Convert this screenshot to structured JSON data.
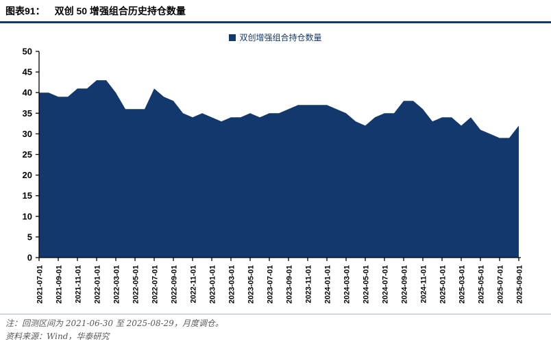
{
  "header": {
    "figure_label": "图表91：",
    "title": "双创 50 增强组合历史持仓数量"
  },
  "legend": {
    "label": "双创增强组合持仓数量"
  },
  "chart_data": {
    "type": "area",
    "title": "双创 50 增强组合历史持仓数量",
    "xlabel": "",
    "ylabel": "",
    "ylim": [
      0,
      50
    ],
    "y_ticks": [
      0,
      5,
      10,
      15,
      20,
      25,
      30,
      35,
      40,
      45,
      50
    ],
    "x_tick_every": 2,
    "grid": false,
    "legend_position": "top-center",
    "x": [
      "2021-07-01",
      "2021-08-01",
      "2021-09-01",
      "2021-10-01",
      "2021-11-01",
      "2021-12-01",
      "2022-01-01",
      "2022-02-01",
      "2022-03-01",
      "2022-04-01",
      "2022-05-01",
      "2022-06-01",
      "2022-07-01",
      "2022-08-01",
      "2022-09-01",
      "2022-10-01",
      "2022-11-01",
      "2022-12-01",
      "2023-01-01",
      "2023-02-01",
      "2023-03-01",
      "2023-04-01",
      "2023-05-01",
      "2023-06-01",
      "2023-07-01",
      "2023-08-01",
      "2023-09-01",
      "2023-10-01",
      "2023-11-01",
      "2023-12-01",
      "2024-01-01",
      "2024-02-01",
      "2024-03-01",
      "2024-04-01",
      "2024-05-01",
      "2024-06-01",
      "2024-07-01",
      "2024-08-01",
      "2024-09-01",
      "2024-10-01",
      "2024-11-01",
      "2024-12-01",
      "2025-01-01",
      "2025-02-01",
      "2025-03-01",
      "2025-04-01",
      "2025-05-01",
      "2025-06-01",
      "2025-07-01",
      "2025-08-01",
      "2025-09-01"
    ],
    "series": [
      {
        "name": "双创增强组合持仓数量",
        "values": [
          40,
          40,
          39,
          39,
          41,
          41,
          43,
          43,
          40,
          36,
          36,
          36,
          41,
          39,
          38,
          35,
          34,
          35,
          34,
          33,
          34,
          34,
          35,
          34,
          35,
          35,
          36,
          37,
          37,
          37,
          37,
          36,
          35,
          33,
          32,
          34,
          35,
          35,
          38,
          38,
          36,
          33,
          34,
          34,
          32,
          34,
          31,
          30,
          29,
          29,
          32
        ]
      }
    ],
    "colors": {
      "area": "#13386e",
      "axis": "#000000"
    }
  },
  "footer": {
    "note": "注：回测区间为 2021-06-30 至 2025-08-29，月度调仓。",
    "source": "资料来源：Wind，华泰研究"
  },
  "colors": {
    "accent_navy": "#13386e",
    "footnote_gray": "#595959",
    "separator": "#a9b6c6"
  }
}
